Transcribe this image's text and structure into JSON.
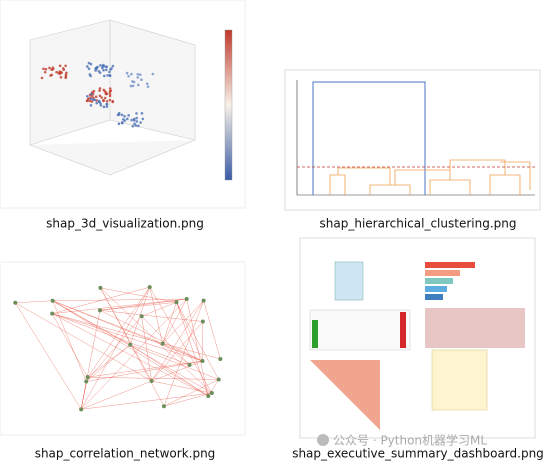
{
  "items": [
    {
      "caption": "shap_3d_visualization.png"
    },
    {
      "caption": "shap_hierarchical_clustering.png"
    },
    {
      "caption": "shap_correlation_network.png"
    },
    {
      "caption": "shap_executive_summary_dashboard.png"
    }
  ],
  "watermark": "公众号 · Python机器学习ML"
}
